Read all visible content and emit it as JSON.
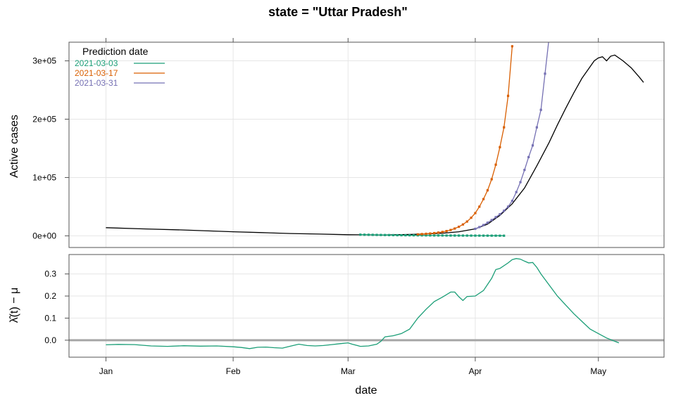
{
  "chart_data": {
    "title": "state = \"Uttar Pradesh\"",
    "xlabel": "date",
    "x_ticks": [
      {
        "date": "2021-01-01",
        "label": "Jan"
      },
      {
        "date": "2021-02-01",
        "label": "Feb"
      },
      {
        "date": "2021-03-01",
        "label": "Mar"
      },
      {
        "date": "2021-04-01",
        "label": "Apr"
      },
      {
        "date": "2021-05-01",
        "label": "May"
      }
    ],
    "xlim": [
      "2020-12-23",
      "2021-05-17"
    ],
    "grid": true,
    "panels": [
      {
        "type": "line",
        "ylabel": "Active cases",
        "ylim": [
          -20000,
          332000
        ],
        "y_ticks": [
          {
            "value": 0,
            "label": "0e+00"
          },
          {
            "value": 100000,
            "label": "1e+05"
          },
          {
            "value": 200000,
            "label": "2e+05"
          },
          {
            "value": 300000,
            "label": "3e+05"
          }
        ],
        "legend": {
          "title": "Prediction date",
          "position": "top-left",
          "entries": [
            {
              "label": "2021-03-03",
              "color": "#1b9e77"
            },
            {
              "label": "2021-03-17",
              "color": "#d95f02"
            },
            {
              "label": "2021-03-31",
              "color": "#7570b3"
            }
          ]
        },
        "series": [
          {
            "role": "observed",
            "color": "#000000",
            "points": [
              [
                "2021-01-01",
                14000
              ],
              [
                "2021-01-10",
                12000
              ],
              [
                "2021-01-20",
                10000
              ],
              [
                "2021-02-01",
                7000
              ],
              [
                "2021-02-08",
                5500
              ],
              [
                "2021-02-15",
                4000
              ],
              [
                "2021-02-22",
                3000
              ],
              [
                "2021-03-01",
                2000
              ],
              [
                "2021-03-10",
                1500
              ],
              [
                "2021-03-17",
                2500
              ],
              [
                "2021-03-24",
                4500
              ],
              [
                "2021-03-28",
                7000
              ],
              [
                "2021-04-01",
                12000
              ],
              [
                "2021-04-04",
                20000
              ],
              [
                "2021-04-07",
                35000
              ],
              [
                "2021-04-10",
                55000
              ],
              [
                "2021-04-13",
                82000
              ],
              [
                "2021-04-16",
                120000
              ],
              [
                "2021-04-19",
                160000
              ],
              [
                "2021-04-21",
                190000
              ],
              [
                "2021-04-23",
                218000
              ],
              [
                "2021-04-25",
                245000
              ],
              [
                "2021-04-27",
                270000
              ],
              [
                "2021-04-29",
                290000
              ],
              [
                "2021-04-30",
                300000
              ],
              [
                "2021-05-01",
                305000
              ],
              [
                "2021-05-02",
                307000
              ],
              [
                "2021-05-03",
                300000
              ],
              [
                "2021-05-04",
                308000
              ],
              [
                "2021-05-05",
                310000
              ],
              [
                "2021-05-07",
                300000
              ],
              [
                "2021-05-09",
                288000
              ],
              [
                "2021-05-11",
                272000
              ],
              [
                "2021-05-12",
                263000
              ]
            ]
          },
          {
            "name": "2021-03-03",
            "role": "prediction",
            "color": "#1b9e77",
            "start": "2021-03-04",
            "step_days": 1,
            "values": [
              2000,
              1900,
              1800,
              1700,
              1600,
              1500,
              1400,
              1300,
              1200,
              1100,
              1050,
              1000,
              950,
              900,
              850,
              800,
              750,
              700,
              650,
              600,
              570,
              540,
              510,
              480,
              450,
              420,
              400,
              380,
              360,
              340,
              320,
              300,
              280,
              260,
              240,
              220
            ]
          },
          {
            "name": "2021-03-17",
            "role": "prediction",
            "color": "#d95f02",
            "start": "2021-03-18",
            "step_days": 1,
            "values": [
              2500,
              3000,
              3500,
              4000,
              4700,
              5600,
              6700,
              8200,
              10000,
              12500,
              15500,
              19500,
              24500,
              31000,
              39000,
              50000,
              63000,
              78000,
              97000,
              122000,
              152000,
              186000,
              240000,
              325000
            ]
          },
          {
            "name": "2021-03-31",
            "role": "prediction",
            "color": "#7570b3",
            "start": "2021-04-01",
            "step_days": 1,
            "values": [
              12000,
              15000,
              18500,
              22500,
              27000,
              32000,
              37000,
              43000,
              50000,
              60000,
              75000,
              92000,
              113000,
              135000,
              155000,
              186000,
              216000,
              278000,
              340000
            ]
          }
        ]
      },
      {
        "type": "line",
        "ylabel": "λ̂(t) − μ",
        "ylim": [
          -0.077,
          0.388
        ],
        "y_ticks": [
          {
            "value": 0.0,
            "label": "0.0"
          },
          {
            "value": 0.1,
            "label": "0.1"
          },
          {
            "value": 0.2,
            "label": "0.2"
          },
          {
            "value": 0.3,
            "label": "0.3"
          }
        ],
        "reference_line": {
          "value": 0,
          "color": "#a6a6a6"
        },
        "series": [
          {
            "color": "#1b9e77",
            "points": [
              [
                "2021-01-01",
                -0.021
              ],
              [
                "2021-01-04",
                -0.019
              ],
              [
                "2021-01-08",
                -0.02
              ],
              [
                "2021-01-12",
                -0.026
              ],
              [
                "2021-01-16",
                -0.028
              ],
              [
                "2021-01-20",
                -0.025
              ],
              [
                "2021-01-24",
                -0.027
              ],
              [
                "2021-01-28",
                -0.026
              ],
              [
                "2021-02-01",
                -0.03
              ],
              [
                "2021-02-03",
                -0.033
              ],
              [
                "2021-02-05",
                -0.038
              ],
              [
                "2021-02-07",
                -0.032
              ],
              [
                "2021-02-09",
                -0.031
              ],
              [
                "2021-02-11",
                -0.034
              ],
              [
                "2021-02-13",
                -0.036
              ],
              [
                "2021-02-15",
                -0.027
              ],
              [
                "2021-02-17",
                -0.018
              ],
              [
                "2021-02-19",
                -0.024
              ],
              [
                "2021-02-21",
                -0.026
              ],
              [
                "2021-02-23",
                -0.024
              ],
              [
                "2021-02-25",
                -0.02
              ],
              [
                "2021-02-27",
                -0.016
              ],
              [
                "2021-03-01",
                -0.012
              ],
              [
                "2021-03-02",
                -0.018
              ],
              [
                "2021-03-04",
                -0.028
              ],
              [
                "2021-03-06",
                -0.026
              ],
              [
                "2021-03-08",
                -0.018
              ],
              [
                "2021-03-09",
                -0.005
              ],
              [
                "2021-03-10",
                0.015
              ],
              [
                "2021-03-12",
                0.02
              ],
              [
                "2021-03-14",
                0.03
              ],
              [
                "2021-03-16",
                0.05
              ],
              [
                "2021-03-18",
                0.1
              ],
              [
                "2021-03-20",
                0.14
              ],
              [
                "2021-03-22",
                0.175
              ],
              [
                "2021-03-24",
                0.195
              ],
              [
                "2021-03-26",
                0.218
              ],
              [
                "2021-03-27",
                0.218
              ],
              [
                "2021-03-28",
                0.197
              ],
              [
                "2021-03-29",
                0.18
              ],
              [
                "2021-03-30",
                0.198
              ],
              [
                "2021-04-01",
                0.2
              ],
              [
                "2021-04-03",
                0.225
              ],
              [
                "2021-04-05",
                0.28
              ],
              [
                "2021-04-06",
                0.32
              ],
              [
                "2021-04-07",
                0.325
              ],
              [
                "2021-04-09",
                0.35
              ],
              [
                "2021-04-10",
                0.365
              ],
              [
                "2021-04-11",
                0.37
              ],
              [
                "2021-04-12",
                0.367
              ],
              [
                "2021-04-13",
                0.358
              ],
              [
                "2021-04-14",
                0.35
              ],
              [
                "2021-04-15",
                0.352
              ],
              [
                "2021-04-16",
                0.33
              ],
              [
                "2021-04-17",
                0.3
              ],
              [
                "2021-04-19",
                0.25
              ],
              [
                "2021-04-21",
                0.2
              ],
              [
                "2021-04-23",
                0.16
              ],
              [
                "2021-04-25",
                0.12
              ],
              [
                "2021-04-27",
                0.085
              ],
              [
                "2021-04-29",
                0.05
              ],
              [
                "2021-05-01",
                0.03
              ],
              [
                "2021-05-03",
                0.01
              ],
              [
                "2021-05-05",
                -0.005
              ],
              [
                "2021-05-06",
                -0.012
              ]
            ]
          }
        ]
      }
    ]
  }
}
